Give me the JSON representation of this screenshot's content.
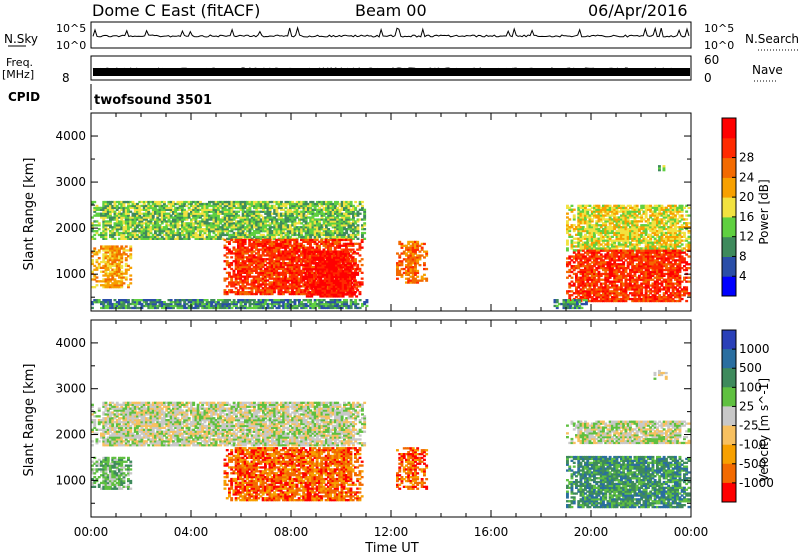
{
  "header": {
    "title": "Dome C East (fitACF)",
    "beam": "Beam 00",
    "date": "06/Apr/2016"
  },
  "strips": {
    "nsky_label": "N.Sky",
    "nsky_tick_top": "10^5",
    "nsky_tick_bottom": "10^0",
    "nsearch_label": "N.Search",
    "nsearch_tick_top": "10^5",
    "nsearch_tick_bottom": "10^0",
    "freq_label": "Freq.",
    "freq_unit": "[MHz]",
    "freq_tick": "8",
    "nave_label": "Nave",
    "nave_tick_top": "60",
    "nave_tick_bottom": "0",
    "cpid_label": "CPID",
    "cpid_value": "twofsound 3501"
  },
  "chart_data": [
    {
      "type": "heatmap",
      "name": "power",
      "ylabel": "Slant Range [km]",
      "ylim": [
        200,
        4500
      ],
      "yticks": [
        "1000",
        "2000",
        "3000",
        "4000"
      ],
      "colorbar_label": "Power [dB]",
      "colorbar_ticks": [
        "4",
        "8",
        "12",
        "16",
        "20",
        "24",
        "28"
      ],
      "colors": [
        "#0000ff",
        "#2a4ea8",
        "#3e8a5c",
        "#5fd040",
        "#f2e240",
        "#f7a000",
        "#f36a00",
        "#ff2a00",
        "#ff0000"
      ],
      "regions": [
        {
          "t": [
            0.0,
            10.9
          ],
          "r": [
            1750,
            2550
          ],
          "level": 3
        },
        {
          "t": [
            0.0,
            1.6
          ],
          "r": [
            700,
            1600
          ],
          "level": 5
        },
        {
          "t": [
            5.3,
            10.8
          ],
          "r": [
            550,
            1750
          ],
          "level": 7
        },
        {
          "t": [
            8.5,
            10.6
          ],
          "r": [
            500,
            1500
          ],
          "level": 8
        },
        {
          "t": [
            12.2,
            13.4
          ],
          "r": [
            800,
            1700
          ],
          "level": 6
        },
        {
          "t": [
            19.0,
            23.9
          ],
          "r": [
            1500,
            2500
          ],
          "level": 4
        },
        {
          "t": [
            19.0,
            23.9
          ],
          "r": [
            400,
            1500
          ],
          "level": 7
        },
        {
          "t": [
            22.5,
            23.0
          ],
          "r": [
            3200,
            3400
          ],
          "level": 3
        },
        {
          "t": [
            0.0,
            11.0
          ],
          "r": [
            250,
            450
          ],
          "level": 2
        },
        {
          "t": [
            18.5,
            19.8
          ],
          "r": [
            250,
            450
          ],
          "level": 2
        }
      ]
    },
    {
      "type": "heatmap",
      "name": "velocity",
      "ylabel": "Slant Range [km]",
      "ylim": [
        200,
        4500
      ],
      "yticks": [
        "1000",
        "2000",
        "3000",
        "4000"
      ],
      "colorbar_label": "Velocity [m s^-1]",
      "colorbar_ticks": [
        "1000",
        "500",
        "100",
        "25",
        "-25",
        "-100",
        "-500",
        "-1000"
      ],
      "colors": [
        "#2a40b8",
        "#2a6ea0",
        "#3e8a5c",
        "#5fc040",
        "#c8c8c8",
        "#f7c060",
        "#f7a000",
        "#f36a00",
        "#ff0000"
      ],
      "regions": [
        {
          "t": [
            0.0,
            10.9
          ],
          "r": [
            1750,
            2700
          ],
          "level": 4
        },
        {
          "t": [
            0.0,
            1.6
          ],
          "r": [
            800,
            1500
          ],
          "level": 3
        },
        {
          "t": [
            5.3,
            10.8
          ],
          "r": [
            550,
            1700
          ],
          "level": 7
        },
        {
          "t": [
            12.2,
            13.4
          ],
          "r": [
            800,
            1700
          ],
          "level": 7
        },
        {
          "t": [
            19.0,
            23.9
          ],
          "r": [
            1800,
            2300
          ],
          "level": 4
        },
        {
          "t": [
            19.0,
            23.9
          ],
          "r": [
            400,
            1500
          ],
          "level": 2
        },
        {
          "t": [
            22.5,
            23.0
          ],
          "r": [
            3200,
            3400
          ],
          "level": 4
        }
      ]
    }
  ],
  "xaxis": {
    "label": "Time UT",
    "ticks": [
      "00:00",
      "04:00",
      "08:00",
      "12:00",
      "16:00",
      "20:00",
      "00:00"
    ]
  }
}
